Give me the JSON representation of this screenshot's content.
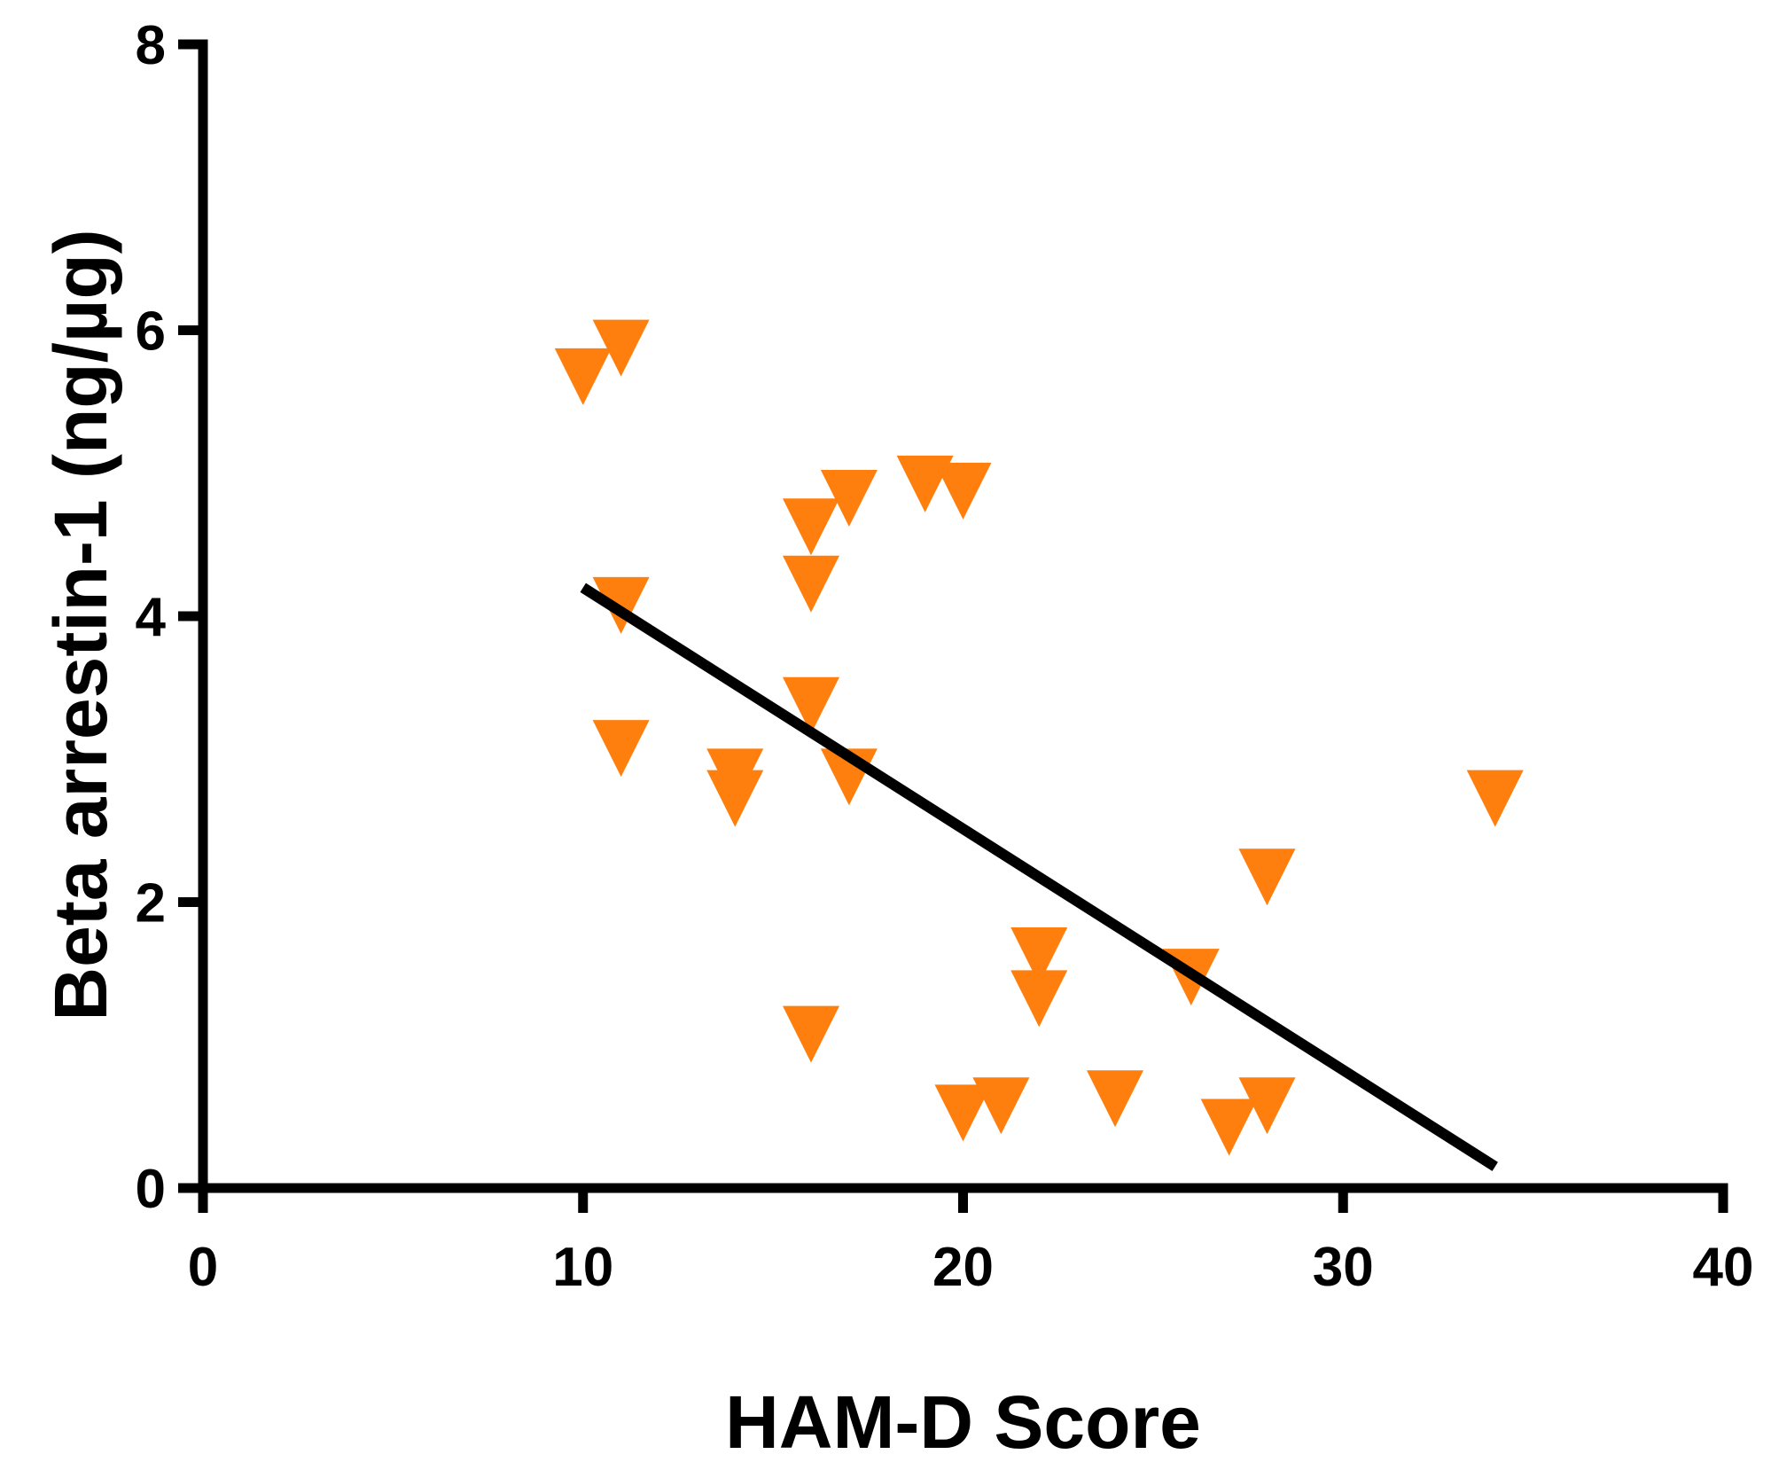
{
  "chart_data": {
    "type": "scatter",
    "title": "",
    "xlabel": "HAM-D Score",
    "ylabel": "Beta arrestin-1 (ng/µg)",
    "xlim": [
      0,
      40
    ],
    "ylim": [
      0,
      8
    ],
    "x_ticks": [
      0,
      10,
      20,
      30,
      40
    ],
    "y_ticks": [
      0,
      2,
      4,
      6,
      8
    ],
    "grid": false,
    "legend": "none",
    "marker": "triangle-down",
    "marker_color": "#FF7F0E",
    "line_color": "#000000",
    "points": [
      {
        "x": 10,
        "y": 5.7
      },
      {
        "x": 11,
        "y": 5.9
      },
      {
        "x": 11,
        "y": 4.1
      },
      {
        "x": 11,
        "y": 3.1
      },
      {
        "x": 14,
        "y": 2.9
      },
      {
        "x": 14,
        "y": 2.75
      },
      {
        "x": 16,
        "y": 4.65
      },
      {
        "x": 16,
        "y": 4.25
      },
      {
        "x": 16,
        "y": 3.4
      },
      {
        "x": 16,
        "y": 1.1
      },
      {
        "x": 17,
        "y": 4.85
      },
      {
        "x": 17,
        "y": 2.9
      },
      {
        "x": 19,
        "y": 4.95
      },
      {
        "x": 20,
        "y": 4.9
      },
      {
        "x": 20,
        "y": 0.55
      },
      {
        "x": 21,
        "y": 0.6
      },
      {
        "x": 22,
        "y": 1.65
      },
      {
        "x": 22,
        "y": 1.35
      },
      {
        "x": 24,
        "y": 0.65
      },
      {
        "x": 26,
        "y": 1.5
      },
      {
        "x": 27,
        "y": 0.45
      },
      {
        "x": 28,
        "y": 2.2
      },
      {
        "x": 28,
        "y": 0.6
      },
      {
        "x": 34,
        "y": 2.75
      }
    ],
    "regression_line": {
      "x": [
        10,
        34
      ],
      "y": [
        4.2,
        0.15
      ]
    }
  }
}
